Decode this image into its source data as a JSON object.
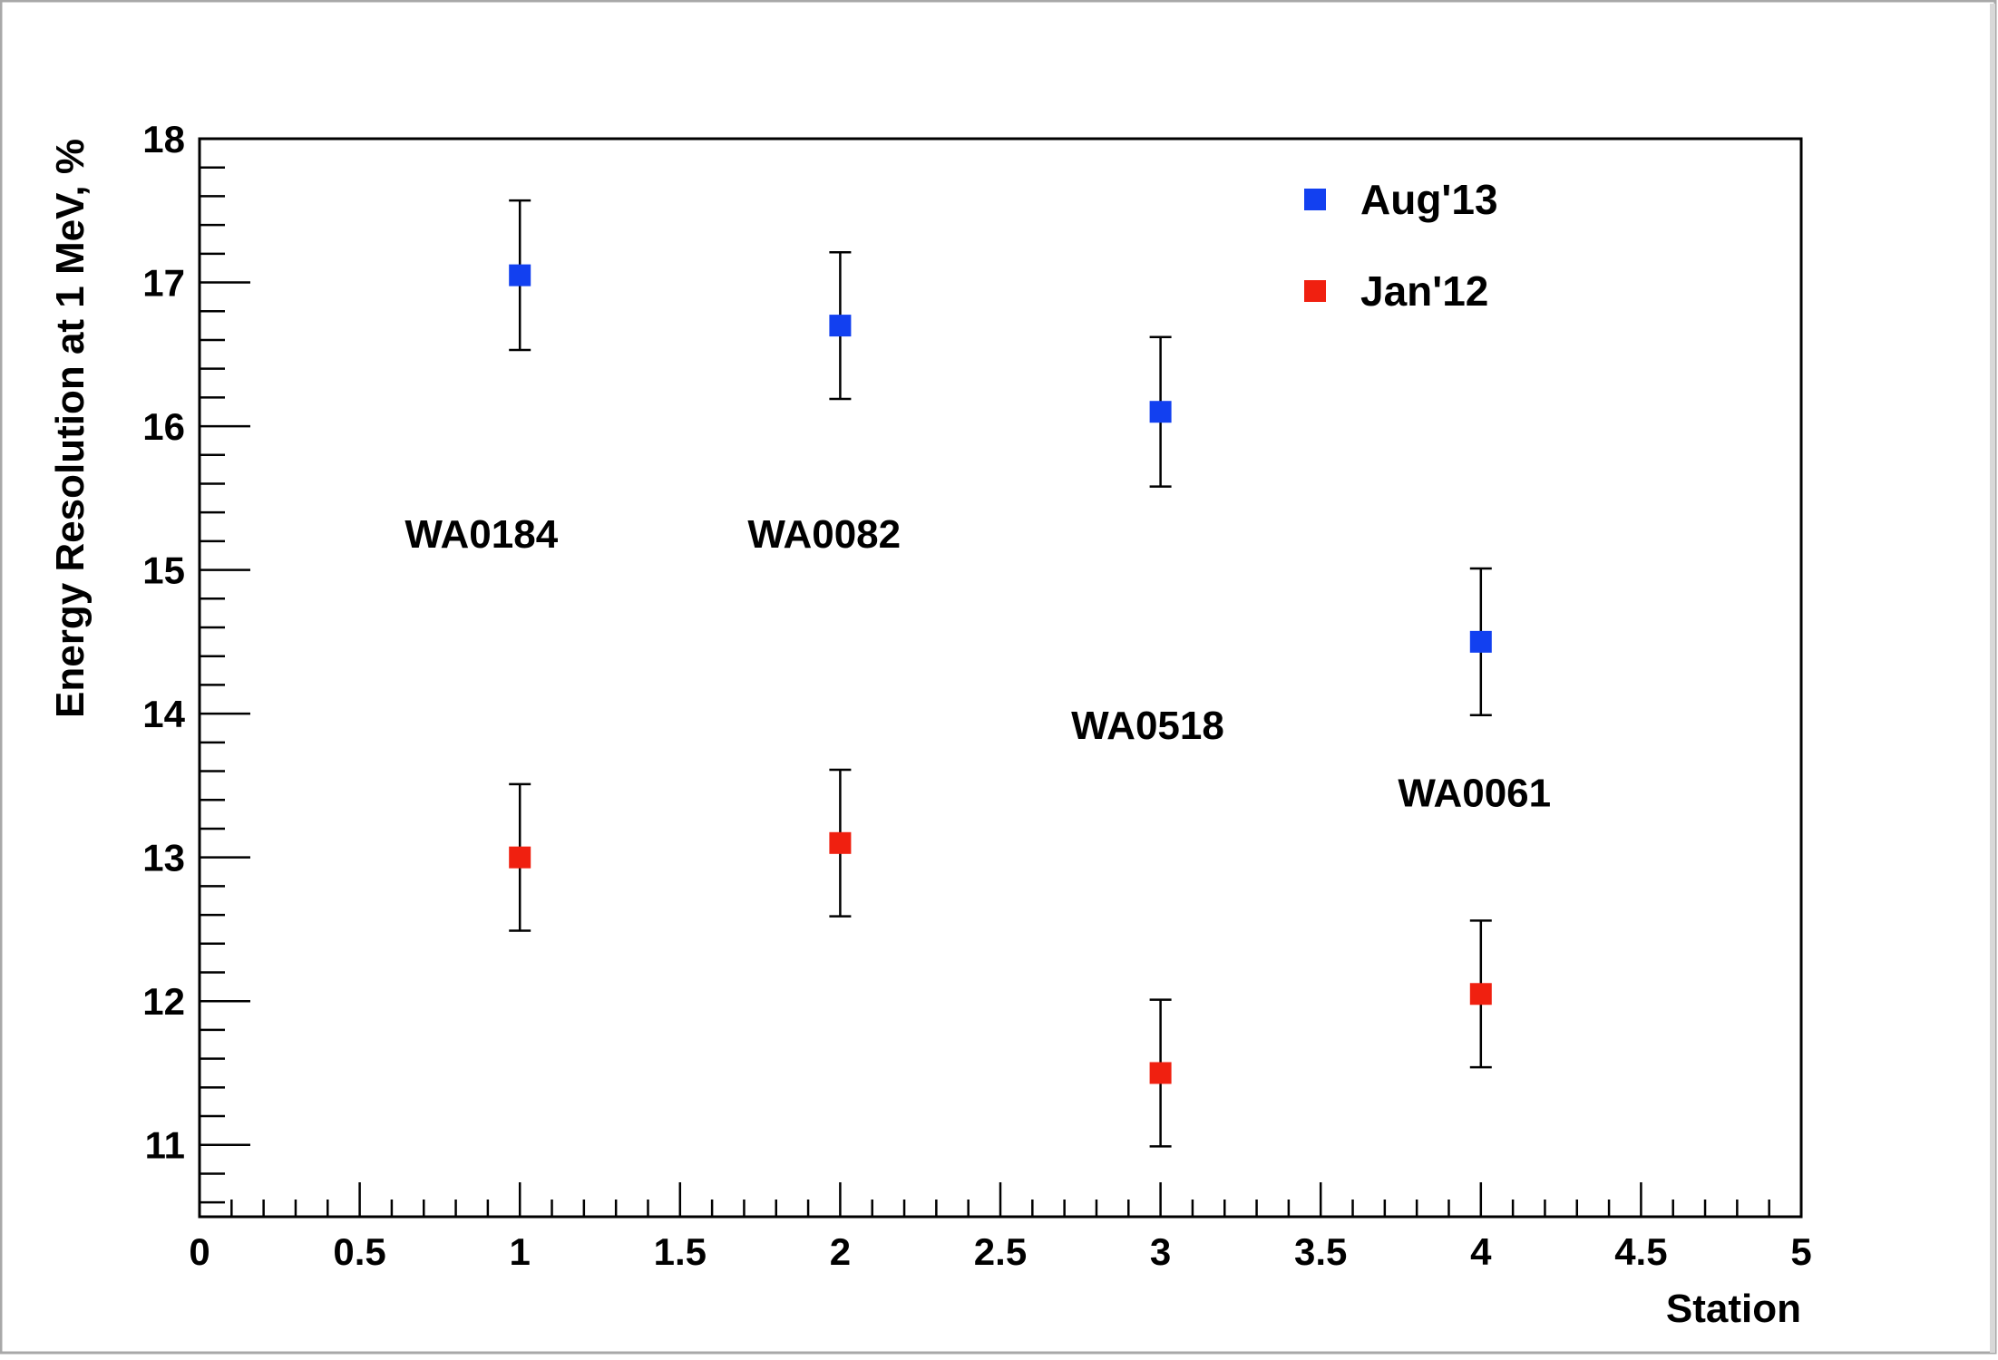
{
  "chart_data": {
    "type": "scatter",
    "title": "",
    "xlabel": "Station",
    "ylabel": "Energy Resolution at 1 MeV, %",
    "xlim": [
      0,
      5
    ],
    "ylim": [
      10.5,
      18
    ],
    "grid": false,
    "legend_position": "top-right",
    "x_ticks": [
      "0",
      "0.5",
      "1",
      "1.5",
      "2",
      "2.5",
      "3",
      "3.5",
      "4",
      "4.5",
      "5"
    ],
    "y_ticks": [
      "11",
      "12",
      "13",
      "14",
      "15",
      "16",
      "17",
      "18"
    ],
    "series": [
      {
        "name": "Aug'13",
        "color": "#1240f0",
        "points": [
          {
            "x": 1,
            "y": 17.05,
            "err": 0.52
          },
          {
            "x": 2,
            "y": 16.7,
            "err": 0.51
          },
          {
            "x": 3,
            "y": 16.1,
            "err": 0.52
          },
          {
            "x": 4,
            "y": 14.5,
            "err": 0.51
          }
        ]
      },
      {
        "name": "Jan'12",
        "color": "#f02010",
        "points": [
          {
            "x": 1,
            "y": 13.0,
            "err": 0.51
          },
          {
            "x": 2,
            "y": 13.1,
            "err": 0.51
          },
          {
            "x": 3,
            "y": 11.5,
            "err": 0.51
          },
          {
            "x": 4,
            "y": 12.05,
            "err": 0.51
          }
        ]
      }
    ],
    "annotations": [
      {
        "text": "WA0184",
        "x": 0.88,
        "y": 15.25
      },
      {
        "text": "WA0082",
        "x": 1.95,
        "y": 15.25
      },
      {
        "text": "WA0518",
        "x": 2.96,
        "y": 13.92
      },
      {
        "text": "WA0061",
        "x": 3.98,
        "y": 13.45
      }
    ]
  }
}
